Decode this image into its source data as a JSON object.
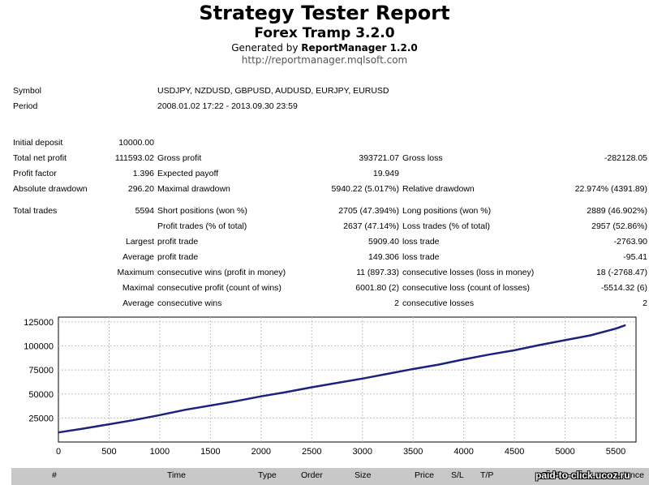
{
  "header": {
    "title": "Strategy Tester Report",
    "subtitle": "Forex Tramp 3.2.0",
    "generated_prefix": "Generated by ",
    "generated_tool": "ReportManager 1.2.0",
    "url": "http://reportmanager.mqlsoft.com"
  },
  "info": {
    "symbol_label": "Symbol",
    "symbol_value": "USDJPY, NZDUSD, GBPUSD, AUDUSD, EURJPY, EURUSD",
    "period_label": "Period",
    "period_value": "2008.01.02 17:22 - 2013.09.30 23:59"
  },
  "stats": {
    "initial_deposit_label": "Initial deposit",
    "initial_deposit": "10000.00",
    "total_net_profit_label": "Total net profit",
    "total_net_profit": "111593.02",
    "gross_profit_label": "Gross profit",
    "gross_profit": "393721.07",
    "gross_loss_label": "Gross loss",
    "gross_loss": "-282128.05",
    "profit_factor_label": "Profit factor",
    "profit_factor": "1.396",
    "expected_payoff_label": "Expected payoff",
    "expected_payoff": "19.949",
    "absolute_drawdown_label": "Absolute drawdown",
    "absolute_drawdown": "296.20",
    "maximal_drawdown_label": "Maximal drawdown",
    "maximal_drawdown": "5940.22 (5.017%)",
    "relative_drawdown_label": "Relative drawdown",
    "relative_drawdown": "22.974% (4391.89)",
    "total_trades_label": "Total trades",
    "total_trades": "5594",
    "short_positions_label": "Short positions (won %)",
    "short_positions": "2705 (47.394%)",
    "long_positions_label": "Long positions (won %)",
    "long_positions": "2889 (46.902%)",
    "profit_trades_label": "Profit trades (% of total)",
    "profit_trades": "2637 (47.14%)",
    "loss_trades_label": "Loss trades (% of total)",
    "loss_trades": "2957 (52.86%)",
    "largest_label": "Largest",
    "largest_profit_label": "profit trade",
    "largest_profit": "5909.40",
    "largest_loss_label": "loss trade",
    "largest_loss": "-2763.90",
    "average_label": "Average",
    "average_profit_label": "profit trade",
    "average_profit": "149.306",
    "average_loss_label": "loss trade",
    "average_loss": "-95.41",
    "maximum_label": "Maximum",
    "max_consec_wins_label": "consecutive wins (profit in money)",
    "max_consec_wins": "11 (897.33)",
    "max_consec_losses_label": "consecutive losses (loss in money)",
    "max_consec_losses": "18 (-2768.47)",
    "maximal_label": "Maximal",
    "maximal_consec_profit_label": "consecutive profit (count of wins)",
    "maximal_consec_profit": "6001.80 (2)",
    "maximal_consec_loss_label": "consecutive loss (count of losses)",
    "maximal_consec_loss": "-5514.32 (6)",
    "average2_label": "Average",
    "avg_consec_wins_label": "consecutive wins",
    "avg_consec_wins": "2",
    "avg_consec_losses_label": "consecutive losses",
    "avg_consec_losses": "2"
  },
  "chart_data": {
    "type": "line",
    "title": "",
    "xlabel": "",
    "ylabel": "",
    "xlim": [
      0,
      5700
    ],
    "ylim": [
      0,
      130000
    ],
    "xticks": [
      0,
      500,
      1000,
      1500,
      2000,
      2500,
      3000,
      3500,
      4000,
      4500,
      5000,
      5500
    ],
    "yticks": [
      25000,
      50000,
      75000,
      100000,
      125000
    ],
    "grid": true,
    "line_color": "#1a237e",
    "series": [
      {
        "x": [
          0,
          250,
          500,
          750,
          1000,
          1250,
          1500,
          1750,
          2000,
          2250,
          2500,
          2750,
          3000,
          3250,
          3500,
          3750,
          4000,
          4250,
          4500,
          4750,
          5000,
          5250,
          5500,
          5594
        ],
        "values": [
          10000,
          14000,
          18500,
          23000,
          28000,
          33500,
          38000,
          42500,
          47500,
          52000,
          57000,
          61500,
          66000,
          71000,
          76000,
          80500,
          86000,
          91000,
          95500,
          101000,
          106000,
          111000,
          118000,
          121600
        ]
      }
    ]
  },
  "trades_header": {
    "num": "#",
    "time": "Time",
    "type": "Type",
    "order": "Order",
    "size": "Size",
    "price": "Price",
    "sl": "S/L",
    "tp": "T/P",
    "profit": "Profit",
    "balance": "Balance"
  },
  "watermark": "paid-to-click.ucoz.ru"
}
